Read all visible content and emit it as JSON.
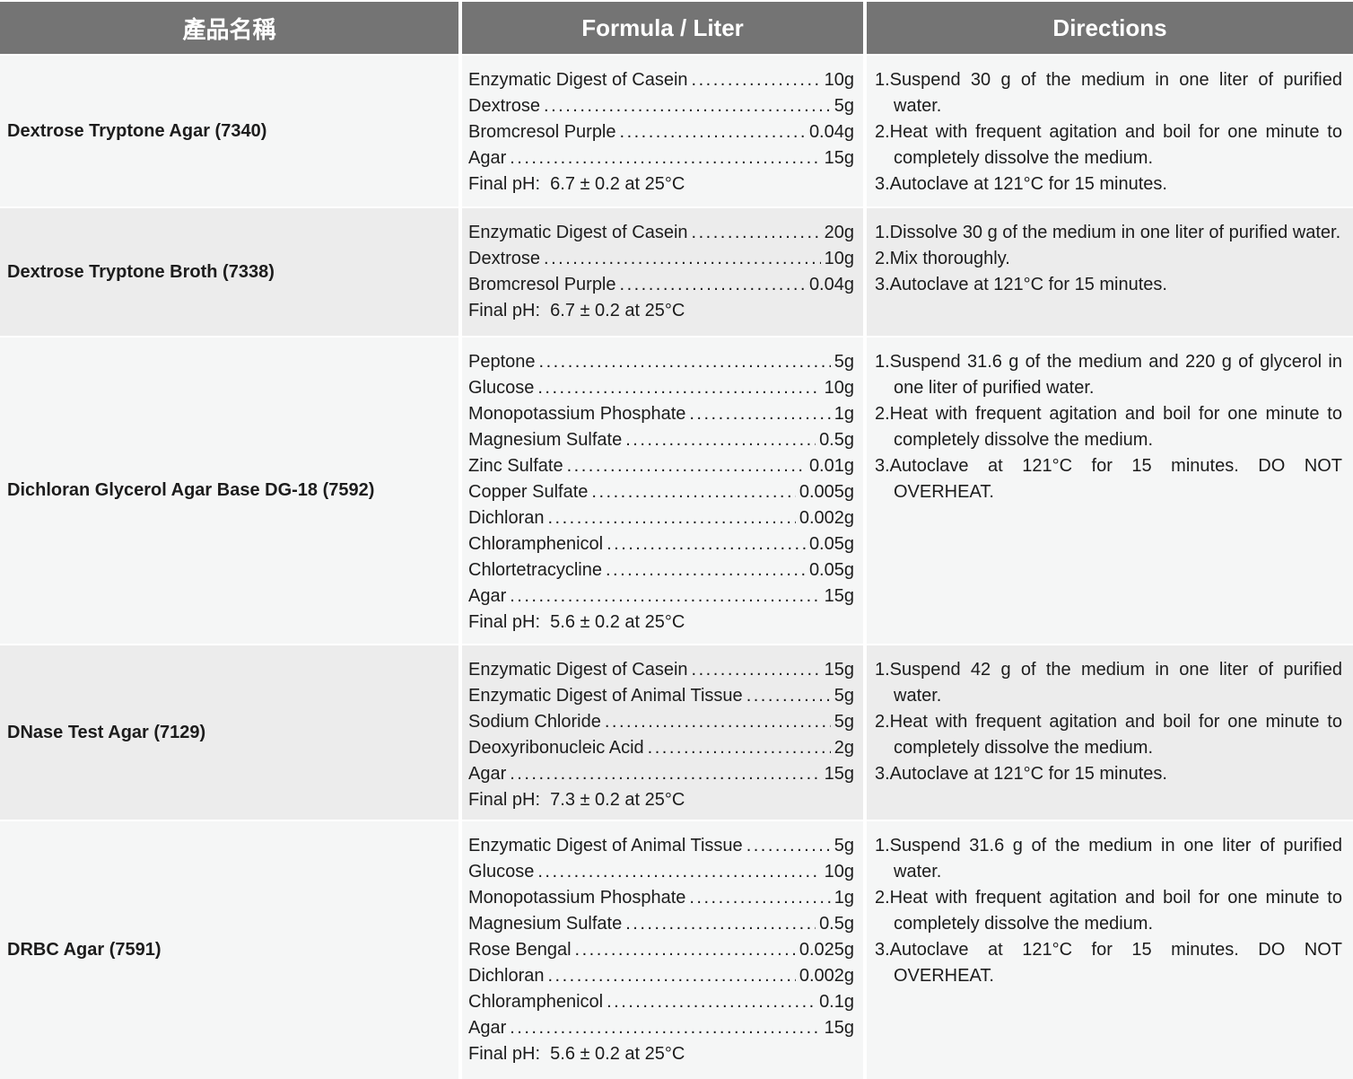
{
  "header": {
    "product_name": "產品名稱",
    "formula": "Formula / Liter",
    "directions": "Directions"
  },
  "colors": {
    "header_bg": "#747474",
    "header_text": "#ffffff",
    "row_light": "#f5f6f6",
    "row_dark": "#ececec",
    "body_text": "#1c1c1c"
  },
  "rows": [
    {
      "name": "Dextrose Tryptone Agar (7340)",
      "formula": [
        {
          "name": "Enzymatic Digest of Casein",
          "amount": "10g"
        },
        {
          "name": "Dextrose",
          "amount": "5g"
        },
        {
          "name": "Bromcresol Purple",
          "amount": "0.04g"
        },
        {
          "name": "Agar",
          "amount": "15g"
        }
      ],
      "final_ph": "Final pH:  6.7 ± 0.2 at 25°C",
      "directions": [
        "1.Suspend 30 g of the medium in one liter of purified water.",
        "2.Heat with frequent agitation and boil for one minute to completely dissolve the medium.",
        "3.Autoclave at 121°C for 15 minutes."
      ]
    },
    {
      "name": "Dextrose Tryptone Broth (7338)",
      "formula": [
        {
          "name": "Enzymatic Digest of Casein",
          "amount": "20g"
        },
        {
          "name": "Dextrose",
          "amount": "10g"
        },
        {
          "name": "Bromcresol Purple",
          "amount": "0.04g"
        }
      ],
      "final_ph": "Final pH:  6.7 ± 0.2 at 25°C",
      "directions": [
        "1.Dissolve 30 g of the medium in one liter of purified water.",
        "2.Mix thoroughly.",
        "3.Autoclave at 121°C for 15 minutes."
      ]
    },
    {
      "name": "Dichloran Glycerol Agar Base DG-18 (7592)",
      "formula": [
        {
          "name": "Peptone",
          "amount": "5g"
        },
        {
          "name": "Glucose",
          "amount": "10g"
        },
        {
          "name": "Monopotassium Phosphate",
          "amount": "1g"
        },
        {
          "name": "Magnesium Sulfate",
          "amount": "0.5g"
        },
        {
          "name": "Zinc Sulfate",
          "amount": "0.01g"
        },
        {
          "name": "Copper Sulfate",
          "amount": "0.005g"
        },
        {
          "name": "Dichloran",
          "amount": "0.002g"
        },
        {
          "name": "Chloramphenicol",
          "amount": "0.05g"
        },
        {
          "name": "Chlortetracycline",
          "amount": "0.05g"
        },
        {
          "name": "Agar",
          "amount": "15g"
        }
      ],
      "final_ph": "Final pH:  5.6 ± 0.2 at 25°C",
      "directions": [
        "1.Suspend 31.6 g of the medium and 220 g of glycerol in one liter of purified water.",
        "2.Heat with frequent agitation and boil for one minute to completely dissolve the medium.",
        "3.Autoclave at 121°C for 15 minutes. DO NOT OVERHEAT."
      ]
    },
    {
      "name": "DNase Test Agar (7129)",
      "formula": [
        {
          "name": "Enzymatic Digest of Casein",
          "amount": "15g"
        },
        {
          "name": "Enzymatic Digest of Animal Tissue",
          "amount": "5g"
        },
        {
          "name": "Sodium Chloride",
          "amount": "5g"
        },
        {
          "name": "Deoxyribonucleic Acid",
          "amount": "2g"
        },
        {
          "name": "Agar",
          "amount": "15g"
        }
      ],
      "final_ph": "Final pH:  7.3 ± 0.2 at 25°C",
      "directions": [
        "1.Suspend 42 g of the medium in one liter of purified water.",
        "2.Heat with frequent agitation and boil for one minute to completely dissolve the medium.",
        "3.Autoclave at 121°C for 15 minutes."
      ]
    },
    {
      "name": "DRBC Agar (7591)",
      "formula": [
        {
          "name": "Enzymatic Digest of Animal Tissue",
          "amount": "5g"
        },
        {
          "name": "Glucose",
          "amount": "10g"
        },
        {
          "name": "Monopotassium Phosphate",
          "amount": "1g"
        },
        {
          "name": "Magnesium Sulfate",
          "amount": "0.5g"
        },
        {
          "name": "Rose Bengal",
          "amount": "0.025g"
        },
        {
          "name": "Dichloran",
          "amount": "0.002g"
        },
        {
          "name": "Chloramphenicol",
          "amount": "0.1g"
        },
        {
          "name": "Agar",
          "amount": "15g"
        }
      ],
      "final_ph": "Final pH:  5.6 ± 0.2 at 25°C",
      "directions": [
        "1.Suspend 31.6 g of the medium in one liter of purified water.",
        "2.Heat with frequent agitation and boil for one minute to completely dissolve the medium.",
        "3.Autoclave at 121°C for 15 minutes. DO NOT OVERHEAT."
      ]
    }
  ]
}
